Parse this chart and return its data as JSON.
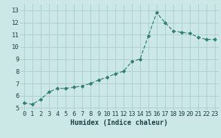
{
  "x": [
    0,
    1,
    2,
    3,
    4,
    5,
    6,
    7,
    8,
    9,
    10,
    11,
    12,
    13,
    14,
    15,
    16,
    17,
    18,
    19,
    20,
    21,
    22,
    23
  ],
  "y": [
    5.4,
    5.3,
    5.7,
    6.3,
    6.6,
    6.6,
    6.7,
    6.8,
    7.0,
    7.3,
    7.5,
    7.8,
    8.0,
    8.8,
    9.0,
    10.9,
    12.8,
    12.0,
    11.3,
    11.2,
    11.1,
    10.8,
    10.6,
    10.6
  ],
  "line_color": "#2e7d6e",
  "marker": "D",
  "marker_size": 2.5,
  "bg_color": "#cce8e6",
  "grid_color": "#aacfcc",
  "xlabel": "Humidex (Indice chaleur)",
  "xlim": [
    -0.5,
    23.5
  ],
  "ylim": [
    4.8,
    13.5
  ],
  "yticks": [
    5,
    6,
    7,
    8,
    9,
    10,
    11,
    12,
    13
  ],
  "xticks": [
    0,
    1,
    2,
    3,
    4,
    5,
    6,
    7,
    8,
    9,
    10,
    11,
    12,
    13,
    14,
    15,
    16,
    17,
    18,
    19,
    20,
    21,
    22,
    23
  ],
  "xlabel_fontsize": 7,
  "tick_fontsize": 6.5,
  "label_color": "#1a4040"
}
